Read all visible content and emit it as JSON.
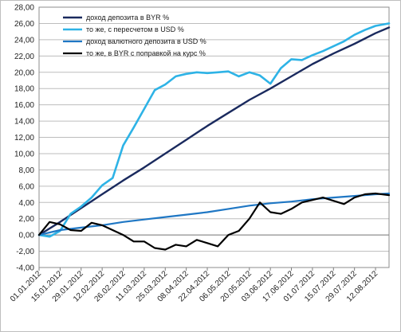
{
  "chart_data": {
    "type": "line",
    "title": "",
    "xlabel": "",
    "ylabel": "",
    "ylim": [
      -4,
      28
    ],
    "yticks": [
      "-4,00",
      "-2,00",
      "0,00",
      "2,00",
      "4,00",
      "6,00",
      "8,00",
      "10,00",
      "12,00",
      "14,00",
      "16,00",
      "18,00",
      "20,00",
      "22,00",
      "24,00",
      "26,00",
      "28,00"
    ],
    "xtick_labels": [
      "01.01.2012",
      "15.01.2012",
      "29.01.2012",
      "12.02.2012",
      "26.02.2012",
      "11.03.2012",
      "25.03.2012",
      "08.04.2012",
      "22.04.2012",
      "06.05.2012",
      "20.05.2012",
      "03.06.2012",
      "17.06.2012",
      "01.07.2012",
      "15.07.2012",
      "29.07.2012",
      "12.08.2012"
    ],
    "grid": true,
    "legend_position": "top-left",
    "series": [
      {
        "name": "доход депозита в BYR %",
        "color": "#1a2a5e",
        "x": [
          "01.01.2012",
          "15.01.2012",
          "29.01.2012",
          "12.02.2012",
          "26.02.2012",
          "11.03.2012",
          "25.03.2012",
          "08.04.2012",
          "22.04.2012",
          "06.05.2012",
          "20.05.2012",
          "03.06.2012",
          "17.06.2012",
          "01.07.2012",
          "15.07.2012",
          "29.07.2012",
          "12.08.2012",
          "21.08.2012"
        ],
        "values": [
          0.0,
          1.6,
          3.3,
          5.0,
          6.7,
          8.3,
          10.0,
          11.7,
          13.4,
          15.0,
          16.6,
          18.0,
          19.5,
          21.0,
          22.3,
          23.5,
          24.8,
          25.5
        ]
      },
      {
        "name": "то же, с пересчетом в USD %",
        "color": "#2eb3e6",
        "x": [
          "01.01.2012",
          "08.01.2012",
          "15.01.2012",
          "22.01.2012",
          "29.01.2012",
          "05.02.2012",
          "12.02.2012",
          "19.02.2012",
          "26.02.2012",
          "04.03.2012",
          "11.03.2012",
          "18.03.2012",
          "25.03.2012",
          "01.04.2012",
          "08.04.2012",
          "15.04.2012",
          "22.04.2012",
          "29.04.2012",
          "06.05.2012",
          "13.05.2012",
          "20.05.2012",
          "27.05.2012",
          "03.06.2012",
          "10.06.2012",
          "17.06.2012",
          "24.06.2012",
          "01.07.2012",
          "08.07.2012",
          "15.07.2012",
          "22.07.2012",
          "29.07.2012",
          "05.08.2012",
          "12.08.2012",
          "21.08.2012"
        ],
        "values": [
          0.0,
          -0.2,
          0.5,
          2.6,
          3.5,
          4.6,
          6.1,
          7.0,
          11.0,
          13.2,
          15.5,
          17.8,
          18.5,
          19.5,
          19.8,
          20.0,
          19.9,
          20.0,
          20.1,
          19.5,
          20.0,
          19.6,
          18.6,
          20.5,
          21.6,
          21.5,
          22.1,
          22.6,
          23.2,
          23.8,
          24.6,
          25.2,
          25.7,
          26.0
        ]
      },
      {
        "name": "доход валютного депозита в USD %",
        "color": "#1f77c4",
        "x": [
          "01.01.2012",
          "15.01.2012",
          "29.01.2012",
          "12.02.2012",
          "26.02.2012",
          "11.03.2012",
          "25.03.2012",
          "08.04.2012",
          "22.04.2012",
          "06.05.2012",
          "20.05.2012",
          "03.06.2012",
          "17.06.2012",
          "01.07.2012",
          "15.07.2012",
          "29.07.2012",
          "12.08.2012",
          "21.08.2012"
        ],
        "values": [
          0.0,
          0.6,
          0.9,
          1.2,
          1.6,
          1.9,
          2.2,
          2.5,
          2.8,
          3.2,
          3.6,
          3.9,
          4.1,
          4.4,
          4.6,
          4.8,
          5.0,
          5.1
        ]
      },
      {
        "name": "то же, в BYR с поправкой на курс %",
        "color": "#000000",
        "x": [
          "01.01.2012",
          "08.01.2012",
          "15.01.2012",
          "22.01.2012",
          "29.01.2012",
          "05.02.2012",
          "12.02.2012",
          "19.02.2012",
          "26.02.2012",
          "04.03.2012",
          "11.03.2012",
          "18.03.2012",
          "25.03.2012",
          "01.04.2012",
          "08.04.2012",
          "15.04.2012",
          "22.04.2012",
          "29.04.2012",
          "06.05.2012",
          "13.05.2012",
          "20.05.2012",
          "27.05.2012",
          "03.06.2012",
          "10.06.2012",
          "17.06.2012",
          "24.06.2012",
          "01.07.2012",
          "08.07.2012",
          "15.07.2012",
          "22.07.2012",
          "29.07.2012",
          "05.08.2012",
          "12.08.2012",
          "21.08.2012"
        ],
        "values": [
          0.0,
          1.6,
          1.3,
          0.6,
          0.5,
          1.5,
          1.2,
          0.6,
          0.0,
          -0.8,
          -0.8,
          -1.6,
          -1.8,
          -1.2,
          -1.4,
          -0.6,
          -1.0,
          -1.4,
          0.0,
          0.5,
          2.0,
          4.0,
          2.8,
          2.6,
          3.2,
          4.0,
          4.3,
          4.6,
          4.2,
          3.8,
          4.6,
          5.0,
          5.1,
          4.9
        ]
      }
    ]
  }
}
